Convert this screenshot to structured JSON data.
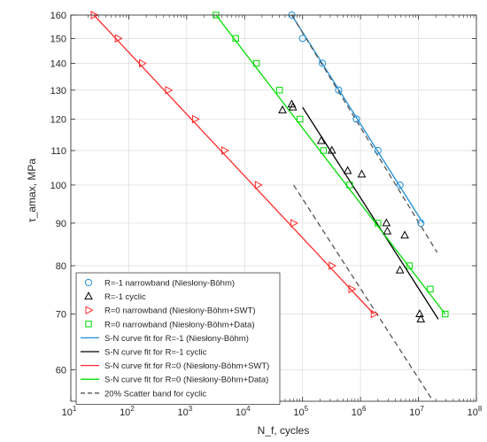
{
  "chart_data": {
    "type": "scatter",
    "title": "",
    "xlabel": "N_f, cycles",
    "ylabel": "τ_amax, MPa",
    "xscale": "log",
    "yscale": "log",
    "xlim": [
      10,
      100000000
    ],
    "ylim": [
      55,
      160
    ],
    "x_ticks": [
      10,
      100,
      1000,
      10000,
      100000,
      1000000,
      10000000,
      100000000
    ],
    "x_tick_labels": [
      {
        "base": "10",
        "exp": "1"
      },
      {
        "base": "10",
        "exp": "2"
      },
      {
        "base": "10",
        "exp": "3"
      },
      {
        "base": "10",
        "exp": "4"
      },
      {
        "base": "10",
        "exp": "5"
      },
      {
        "base": "10",
        "exp": "6"
      },
      {
        "base": "10",
        "exp": "7"
      },
      {
        "base": "10",
        "exp": "8"
      }
    ],
    "y_ticks": [
      60,
      70,
      80,
      90,
      100,
      110,
      120,
      130,
      140,
      150,
      160
    ],
    "y_tick_labels": [
      "60",
      "70",
      "80",
      "90",
      "100",
      "110",
      "120",
      "130",
      "140",
      "150",
      "160"
    ],
    "grid": true,
    "legend_position": "bottom-left",
    "colors": {
      "blue": "#1f8fd6",
      "black": "#000000",
      "red": "#ff2b2b",
      "green": "#00dd00",
      "scatter_band": "#555555",
      "grid": "#dcdcdc",
      "axis": "#262626"
    },
    "marker_series": [
      {
        "name": "R=-1 narrowband (Niesłony-Böhm)",
        "marker": "circle",
        "color": "#1f8fd6",
        "points": [
          [
            65000,
            160
          ],
          [
            100000,
            150
          ],
          [
            220000,
            140
          ],
          [
            420000,
            130
          ],
          [
            850000,
            120
          ],
          [
            2000000,
            110
          ],
          [
            4800000,
            100
          ],
          [
            11000000,
            90
          ]
        ]
      },
      {
        "name": "R=-1 cyclic",
        "marker": "triangle-up",
        "color": "#000000",
        "points": [
          [
            45000,
            123
          ],
          [
            65000,
            125
          ],
          [
            68000,
            124
          ],
          [
            210000,
            113
          ],
          [
            320000,
            110
          ],
          [
            600000,
            104
          ],
          [
            1050000,
            103
          ],
          [
            2800000,
            90
          ],
          [
            2900000,
            88
          ],
          [
            4800000,
            79
          ],
          [
            5800000,
            87
          ],
          [
            10500000,
            70
          ],
          [
            11000000,
            69
          ]
        ]
      },
      {
        "name": "R=0 narrowband (Niesłony-Böhm+SWT)",
        "marker": "triangle-right",
        "color": "#ff2b2b",
        "points": [
          [
            25,
            160
          ],
          [
            65,
            150
          ],
          [
            170,
            140
          ],
          [
            480,
            130
          ],
          [
            1400,
            120
          ],
          [
            4500,
            110
          ],
          [
            17000,
            100
          ],
          [
            70000,
            90
          ],
          [
            320000,
            80
          ],
          [
            700000,
            75
          ],
          [
            1700000,
            70
          ]
        ]
      },
      {
        "name": "R=0 narrowband (Niesłony-Böhm+Data)",
        "marker": "square",
        "color": "#00dd00",
        "points": [
          [
            3200,
            160
          ],
          [
            7000,
            150
          ],
          [
            16000,
            140
          ],
          [
            40000,
            130
          ],
          [
            90000,
            120
          ],
          [
            230000,
            110
          ],
          [
            650000,
            100
          ],
          [
            2000000,
            90
          ],
          [
            7000000,
            80
          ],
          [
            16000000,
            75
          ],
          [
            29000000,
            70
          ]
        ]
      }
    ],
    "line_series": [
      {
        "name": "S-N curve fit for R=-1 (Niesłony-Böhm)",
        "color": "#1f8fd6",
        "dash": false,
        "points": [
          [
            65000,
            160
          ],
          [
            12000000,
            90
          ]
        ]
      },
      {
        "name": "S-N curve fit for R=-1 cyclic",
        "color": "#000000",
        "dash": false,
        "points": [
          [
            100000,
            124
          ],
          [
            22000000,
            69
          ]
        ]
      },
      {
        "name": "S-N curve fit for R=0 (Niesłony-Böhm+SWT)",
        "color": "#ff2b2b",
        "dash": false,
        "points": [
          [
            25,
            160
          ],
          [
            1700000,
            70
          ]
        ]
      },
      {
        "name": "S-N curve fit for R=0 (Niesłony-Böhm+Data)",
        "color": "#00dd00",
        "dash": false,
        "points": [
          [
            3200,
            160
          ],
          [
            29000000,
            70
          ]
        ]
      },
      {
        "name": "20% Scatter band for cyclic",
        "color": "#555555",
        "dash": true,
        "points": [
          [
            70000,
            100
          ],
          [
            18000000,
            55
          ]
        ]
      },
      {
        "name": "",
        "color": "#555555",
        "dash": true,
        "points": [
          [
            65000,
            160
          ],
          [
            21000000,
            83
          ]
        ]
      }
    ],
    "legend": [
      {
        "label": "R=-1 narrowband (Niesłony-Böhm)",
        "kind": "marker",
        "marker": "circle",
        "color": "#1f8fd6"
      },
      {
        "label": "R=-1 cyclic",
        "kind": "marker",
        "marker": "triangle-up",
        "color": "#000000"
      },
      {
        "label": "R=0 narrowband (Niesłony-Böhm+SWT)",
        "kind": "marker",
        "marker": "triangle-right",
        "color": "#ff2b2b"
      },
      {
        "label": "R=0 narrowband (Niesłony-Böhm+Data)",
        "kind": "marker",
        "marker": "square",
        "color": "#00dd00"
      },
      {
        "label": "S-N curve fit for R=-1 (Niesłony-Böhm)",
        "kind": "line",
        "color": "#1f8fd6"
      },
      {
        "label": "S-N curve fit for R=-1 cyclic",
        "kind": "line",
        "color": "#000000"
      },
      {
        "label": "S-N curve fit for R=0 (Niesłony-Böhm+SWT)",
        "kind": "line",
        "color": "#ff2b2b"
      },
      {
        "label": "S-N curve fit for R=0 (Niesłony-Böhm+Data)",
        "kind": "line",
        "color": "#00dd00"
      },
      {
        "label": "20% Scatter band for cyclic",
        "kind": "dashed-line",
        "color": "#555555"
      }
    ]
  }
}
